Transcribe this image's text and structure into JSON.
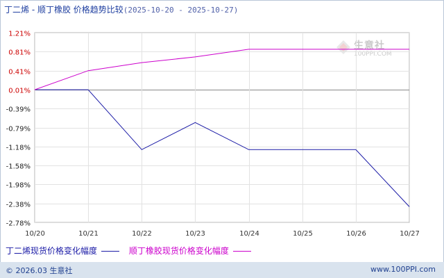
{
  "title": {
    "main": "丁二烯 - 顺丁橡胶 价格趋势比较",
    "range": "(2025-10-20 - 2025-10-27)"
  },
  "watermark": {
    "name": "生意社",
    "url": "100PPI.COM"
  },
  "legend": [
    {
      "label": "丁二烯现货价格变化幅度",
      "color": "#1a1aa6"
    },
    {
      "label": "顺丁橡胶现货价格变化幅度",
      "color": "#cc00cc"
    }
  ],
  "footer": {
    "copyright": "© 2026.03 生意社",
    "site": "www.100PPI.com"
  },
  "chart_data": {
    "type": "line",
    "title": "丁二烯 - 顺丁橡胶 价格趋势比较",
    "x": [
      "10/20",
      "10/21",
      "10/22",
      "10/23",
      "10/24",
      "10/25",
      "10/26",
      "10/27"
    ],
    "y_ticks": [
      "1.21%",
      "0.81%",
      "0.41%",
      "0.01%",
      "-0.39%",
      "-0.79%",
      "-1.18%",
      "-1.58%",
      "-1.98%",
      "-2.38%",
      "-2.78%"
    ],
    "ylim": [
      -2.78,
      1.21
    ],
    "series": [
      {
        "name": "丁二烯现货价格变化幅度",
        "color": "#1a1aa6",
        "values": [
          0.01,
          0.01,
          -1.25,
          -0.68,
          -1.25,
          -1.25,
          -1.25,
          -2.45
        ]
      },
      {
        "name": "顺丁橡胶现货价格变化幅度",
        "color": "#cc00cc",
        "values": [
          0.01,
          0.41,
          0.58,
          0.7,
          0.86,
          0.86,
          0.86,
          0.86
        ]
      }
    ],
    "grid": true
  }
}
